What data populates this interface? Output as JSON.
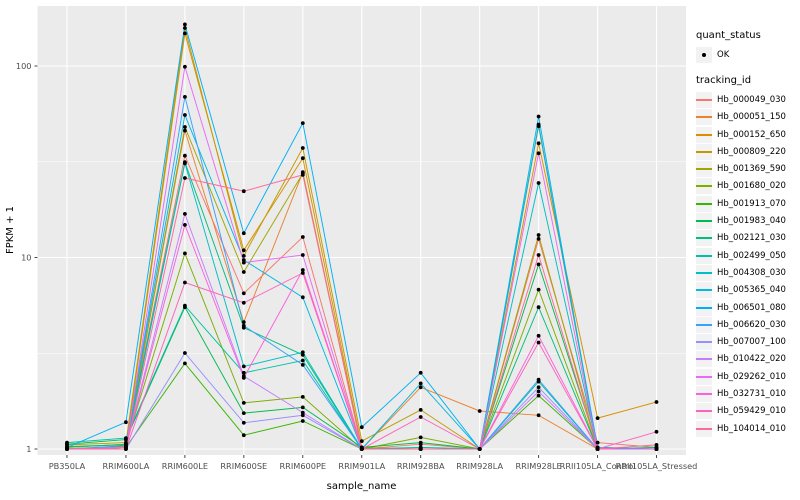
{
  "axes": {
    "x_title": "sample_name",
    "y_title": "FPKM + 1",
    "y_ticks": [
      {
        "label": "1",
        "value": 1
      },
      {
        "label": "10",
        "value": 10
      },
      {
        "label": "100",
        "value": 100
      }
    ],
    "y_minor_ticks": [
      3.162,
      31.623
    ]
  },
  "legend": {
    "quant_status": {
      "title": "quant_status",
      "ok_label": "OK"
    },
    "tracking": {
      "title": "tracking_id"
    }
  },
  "style": {
    "panel_bg": "#EBEBEB",
    "grid_color": "#FFFFFF",
    "tick_mark_color": "#333333",
    "tick_text_color": "#4D4D4D",
    "point_color": "#000000",
    "key_bg": "#F2F2F2"
  },
  "chart_data": {
    "type": "line",
    "title": "",
    "xlabel": "sample_name",
    "ylabel": "FPKM + 1",
    "y_scale": "log10",
    "ylim": [
      0.93,
      206
    ],
    "y_ticks": [
      1,
      10,
      100
    ],
    "y_minor_ticks": [
      3.162,
      31.623
    ],
    "grid": true,
    "legend_position": "right",
    "quant_status": "OK",
    "categories": [
      "PB350LA",
      "RRIM600LA",
      "RRIM600LE",
      "RRIM600SE",
      "RRIM600PE",
      "RRIM901LA",
      "RRIM928BA",
      "RRIM928LA",
      "RRIM928LE",
      "RRII105LA_Control",
      "RRII105LA_Stressed"
    ],
    "series": [
      {
        "name": "Hb_000049_030",
        "color": "#F8766D",
        "values": [
          1.02,
          1.06,
          34,
          6.5,
          12.8,
          1.0,
          1.06,
          1.0,
          12.5,
          1.08,
          1.02
        ]
      },
      {
        "name": "Hb_000051_150",
        "color": "#EA8331",
        "values": [
          1.0,
          1.02,
          46,
          4.6,
          27.9,
          1.0,
          2.1,
          1.58,
          1.5,
          1.0,
          1.0
        ]
      },
      {
        "name": "Hb_000152_650",
        "color": "#D89000",
        "values": [
          1.0,
          1.03,
          148,
          10.9,
          33,
          1.02,
          1.0,
          1.0,
          39.5,
          1.45,
          1.76
        ]
      },
      {
        "name": "Hb_000809_220",
        "color": "#C09B00",
        "values": [
          1.05,
          1.08,
          158,
          10.2,
          37.3,
          1.1,
          1.6,
          1.0,
          48.5,
          1.0,
          1.0
        ]
      },
      {
        "name": "Hb_001369_590",
        "color": "#A3A500",
        "values": [
          1.0,
          1.02,
          48,
          8.4,
          27.5,
          1.0,
          1.0,
          1.0,
          13.1,
          1.0,
          1.0
        ]
      },
      {
        "name": "Hb_001680_020",
        "color": "#7CAE00",
        "values": [
          1.02,
          1.06,
          10.5,
          1.74,
          1.87,
          1.0,
          1.15,
          1.0,
          6.8,
          1.0,
          1.0
        ]
      },
      {
        "name": "Hb_001913_070",
        "color": "#39B600",
        "values": [
          1.0,
          1.02,
          2.8,
          1.18,
          1.4,
          1.0,
          1.0,
          1.0,
          1.9,
          1.0,
          1.0
        ]
      },
      {
        "name": "Hb_001983_040",
        "color": "#00BB4E",
        "values": [
          1.06,
          1.12,
          5.5,
          1.54,
          1.65,
          1.02,
          1.08,
          1.0,
          9.2,
          1.02,
          1.0
        ]
      },
      {
        "name": "Hb_002121_030",
        "color": "#00BF7D",
        "values": [
          1.03,
          1.05,
          31.5,
          4.3,
          3.1,
          1.0,
          1.0,
          1.0,
          5.5,
          1.0,
          1.02
        ]
      },
      {
        "name": "Hb_002499_050",
        "color": "#00C1A3",
        "values": [
          1.08,
          1.14,
          5.6,
          2.5,
          2.9,
          1.0,
          1.02,
          1.0,
          2.25,
          1.0,
          1.0
        ]
      },
      {
        "name": "Hb_004308_030",
        "color": "#00BFC4",
        "values": [
          1.0,
          1.02,
          31,
          2.7,
          3.2,
          1.0,
          1.0,
          1.0,
          24.5,
          1.0,
          1.0
        ]
      },
      {
        "name": "Hb_005365_040",
        "color": "#00BAE0",
        "values": [
          1.0,
          1.04,
          55.5,
          9.7,
          6.2,
          1.0,
          2.2,
          1.0,
          54.5,
          1.0,
          1.0
        ]
      },
      {
        "name": "Hb_006501_080",
        "color": "#00B0F6",
        "values": [
          1.02,
          1.38,
          165,
          13.4,
          50.3,
          1.3,
          2.5,
          1.0,
          49.5,
          1.02,
          1.0
        ]
      },
      {
        "name": "Hb_006620_030",
        "color": "#35A2FF",
        "values": [
          1.0,
          1.02,
          69,
          4.4,
          2.75,
          1.0,
          1.0,
          1.0,
          2.3,
          1.0,
          1.0
        ]
      },
      {
        "name": "Hb_007007_100",
        "color": "#9590FF",
        "values": [
          1.0,
          1.0,
          3.17,
          1.37,
          1.5,
          1.0,
          1.0,
          1.0,
          2.1,
          1.0,
          1.0
        ]
      },
      {
        "name": "Hb_010422_020",
        "color": "#C77CFF",
        "values": [
          1.0,
          1.02,
          16.9,
          2.4,
          1.55,
          1.0,
          1.0,
          1.0,
          2.0,
          1.0,
          1.0
        ]
      },
      {
        "name": "Hb_029262_010",
        "color": "#E76BF3",
        "values": [
          1.0,
          1.0,
          99,
          9.4,
          10.3,
          1.0,
          1.0,
          1.0,
          35,
          1.0,
          1.0
        ]
      },
      {
        "name": "Hb_032731_010",
        "color": "#FA62DB",
        "values": [
          1.0,
          1.02,
          14.8,
          2.35,
          8.6,
          1.0,
          1.0,
          1.0,
          3.9,
          1.0,
          1.0
        ]
      },
      {
        "name": "Hb_059429_010",
        "color": "#FF62BC",
        "values": [
          1.0,
          1.0,
          7.4,
          5.8,
          8.3,
          1.0,
          1.47,
          1.0,
          3.6,
          1.0,
          1.23
        ]
      },
      {
        "name": "Hb_104014_010",
        "color": "#FF6A98",
        "values": [
          1.0,
          1.0,
          26,
          22.2,
          27,
          1.0,
          1.0,
          1.0,
          10.3,
          1.0,
          1.05
        ]
      }
    ]
  }
}
